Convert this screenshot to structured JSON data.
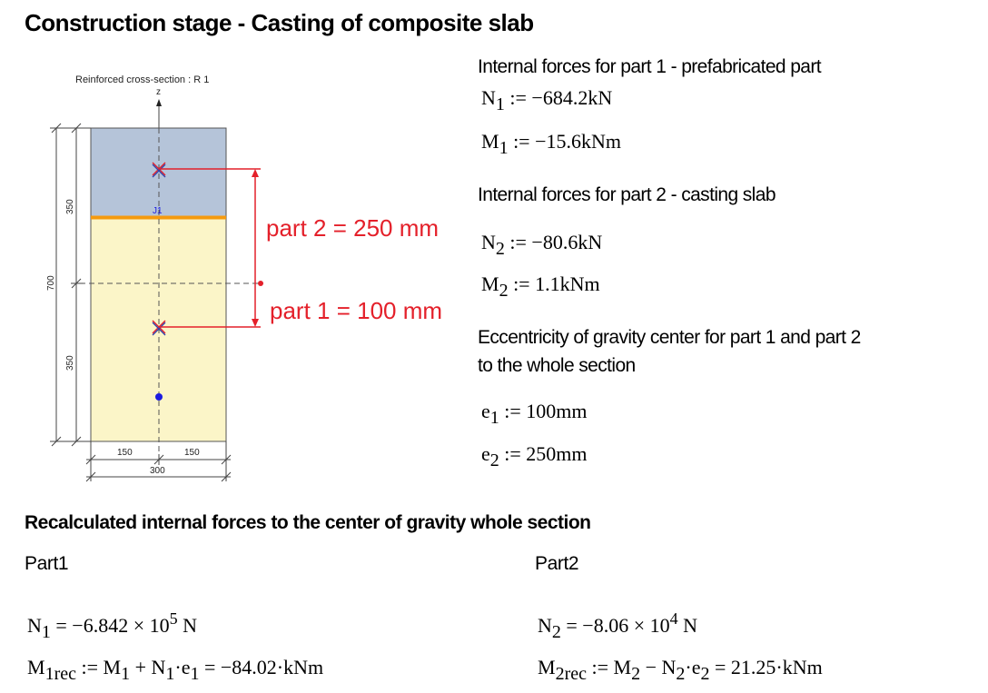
{
  "title": "Construction stage - Casting of composite slab",
  "figure": {
    "caption": "Reinforced cross-section : R 1",
    "axis_label": "z",
    "point_label": "J1",
    "dim_height": "700",
    "dim_top": "350",
    "dim_bottom": "350",
    "dim_half_left": "150",
    "dim_half_right": "150",
    "dim_width": "300",
    "annot_part2": "part 2 = 250 mm",
    "annot_part1": "part 1 = 100 mm",
    "colors": {
      "top_part": "#b5c4d9",
      "bottom_part": "#fbf5c8",
      "interface": "#f59a0e",
      "annotation": "#e4202a",
      "gravity_point": "#1b1be0"
    }
  },
  "part1_heading": "Internal forces for part 1 - prefabricated part",
  "N1": {
    "sym": "N",
    "sub": "1",
    "op": ":=",
    "val": "−684.2kN"
  },
  "M1": {
    "sym": "M",
    "sub": "1",
    "op": ":=",
    "val": "−15.6kNm"
  },
  "part2_heading": "Internal forces for part 2 - casting slab",
  "N2": {
    "sym": "N",
    "sub": "2",
    "op": ":=",
    "val": "−80.6kN"
  },
  "M2": {
    "sym": "M",
    "sub": "2",
    "op": ":=",
    "val": "1.1kNm"
  },
  "ecc_heading_line1": "Eccentricity of gravity center for part 1 and part 2",
  "ecc_heading_line2": "to the whole section",
  "e1": {
    "sym": "e",
    "sub": "1",
    "op": ":=",
    "val": "100mm"
  },
  "e2": {
    "sym": "e",
    "sub": "2",
    "op": ":=",
    "val": "250mm"
  },
  "recalc_heading": "Recalculated internal forces to the center of gravity whole section",
  "col1_label": "Part1",
  "col2_label": "Part2",
  "N1_result": {
    "lhs": "N",
    "sub": "1",
    "eq": "= −6.842 × 10",
    "exp": "5",
    "unit": " N"
  },
  "N2_result": {
    "lhs": "N",
    "sub": "2",
    "eq": "= −8.06 × 10",
    "exp": "4",
    "unit": " N"
  },
  "M1rec": {
    "lhs": "M",
    "sub": "1rec",
    "op": ":=",
    "t1": "M",
    "t1sub": "1",
    "plus": " + ",
    "t2": "N",
    "t2sub": "1",
    "dot": "·",
    "t3": "e",
    "t3sub": "1",
    "result": " = −84.02·kNm"
  },
  "M2rec": {
    "lhs": "M",
    "sub": "2rec",
    "op": ":=",
    "t1": "M",
    "t1sub": "2",
    "minus": " − ",
    "t2": "N",
    "t2sub": "2",
    "dot": "·",
    "t3": "e",
    "t3sub": "2",
    "result": " = 21.25·kNm"
  }
}
